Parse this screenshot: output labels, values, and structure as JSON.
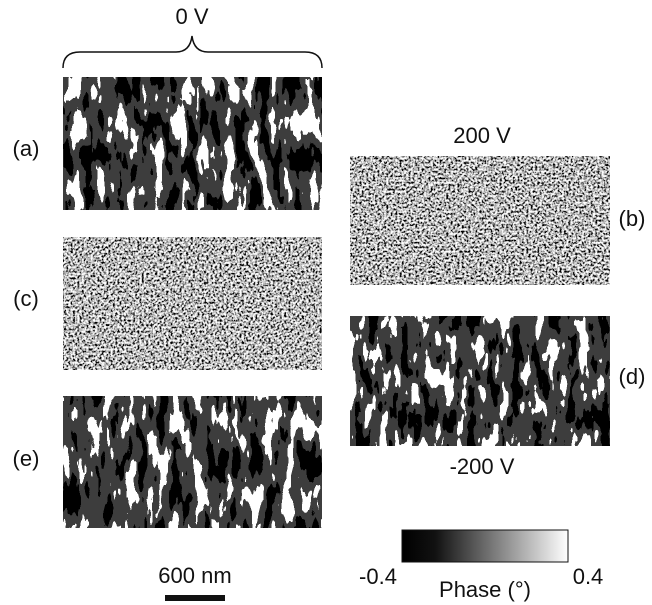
{
  "header": {
    "label": "0 V"
  },
  "panels": [
    {
      "label": "(a)"
    },
    {
      "label": "(b)",
      "voltage": "200 V"
    },
    {
      "label": "(c)"
    },
    {
      "label": "(d)",
      "voltage": "-200 V"
    },
    {
      "label": "(e)"
    }
  ],
  "scale_bar": {
    "label": "600 nm"
  },
  "colorbar": {
    "min": -0.4,
    "max": 0.4,
    "label": "Phase (°)"
  }
}
